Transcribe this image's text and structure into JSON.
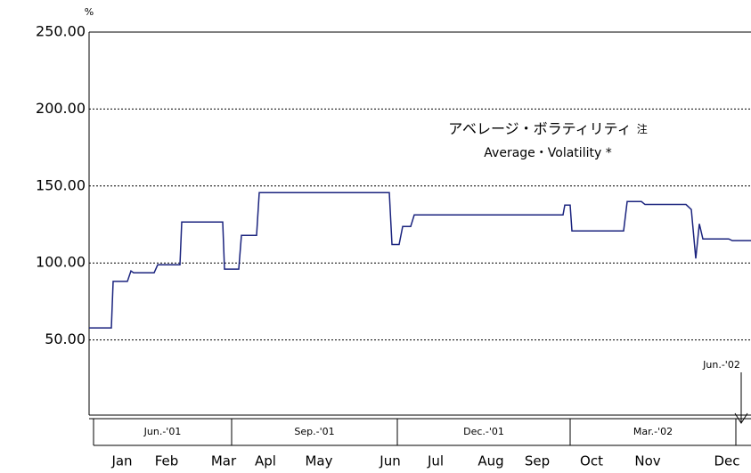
{
  "chart_data": {
    "type": "line",
    "title": "アベレージ・ボラティリティ",
    "title_note": "注",
    "subtitle": "Average・Volatility *",
    "y_label": "%",
    "ylim": [
      0,
      250
    ],
    "yticks": [
      {
        "value": 50,
        "label": "50.00"
      },
      {
        "value": 100,
        "label": "100.00"
      },
      {
        "value": 150,
        "label": "150.00"
      },
      {
        "value": 200,
        "label": "200.00"
      },
      {
        "value": 250,
        "label": "250.00"
      }
    ],
    "grid": true,
    "xlim": [
      0,
      743
    ],
    "xticks": [
      {
        "value": 37,
        "label": "Jan"
      },
      {
        "value": 87,
        "label": "Feb"
      },
      {
        "value": 151,
        "label": "Mar"
      },
      {
        "value": 198,
        "label": "Apl"
      },
      {
        "value": 258,
        "label": "May"
      },
      {
        "value": 338,
        "label": "Jun"
      },
      {
        "value": 389,
        "label": "Jul"
      },
      {
        "value": 451,
        "label": "Aug"
      },
      {
        "value": 503,
        "label": "Sep"
      },
      {
        "value": 564,
        "label": "Oct"
      },
      {
        "value": 627,
        "label": "Nov"
      },
      {
        "value": 716,
        "label": "Dec"
      }
    ],
    "periods": [
      {
        "label": "Jun.-'01",
        "start": 5,
        "end": 160
      },
      {
        "label": "Sep.-'01",
        "start": 160,
        "end": 346
      },
      {
        "label": "Dec.-'01",
        "start": 346,
        "end": 540
      },
      {
        "label": "Mar.-'02",
        "start": 540,
        "end": 726
      }
    ],
    "annotation": {
      "label": "Jun.-'02",
      "x": 732
    },
    "x": [
      0,
      25,
      27,
      43,
      47,
      50,
      73,
      77,
      102,
      104,
      150,
      152,
      168,
      171,
      188,
      191,
      337,
      340,
      348,
      352,
      361,
      365,
      532,
      534,
      540,
      542,
      600,
      604,
      620,
      624,
      670,
      676,
      681,
      685,
      689,
      718,
      722,
      743
    ],
    "series": [
      {
        "name": "Average Volatility",
        "color": "#1a237e",
        "values": [
          57.8,
          57.8,
          88,
          88,
          94.8,
          93.6,
          93.6,
          98.8,
          98.8,
          126.6,
          126.6,
          96,
          96,
          117.9,
          117.9,
          145.7,
          145.7,
          112,
          112,
          123.7,
          123.7,
          131.2,
          131.2,
          137.6,
          137.6,
          120.8,
          120.8,
          139.9,
          139.9,
          138,
          138,
          134.7,
          102.9,
          125.4,
          115.6,
          115.6,
          114.5,
          114.5
        ]
      }
    ]
  }
}
